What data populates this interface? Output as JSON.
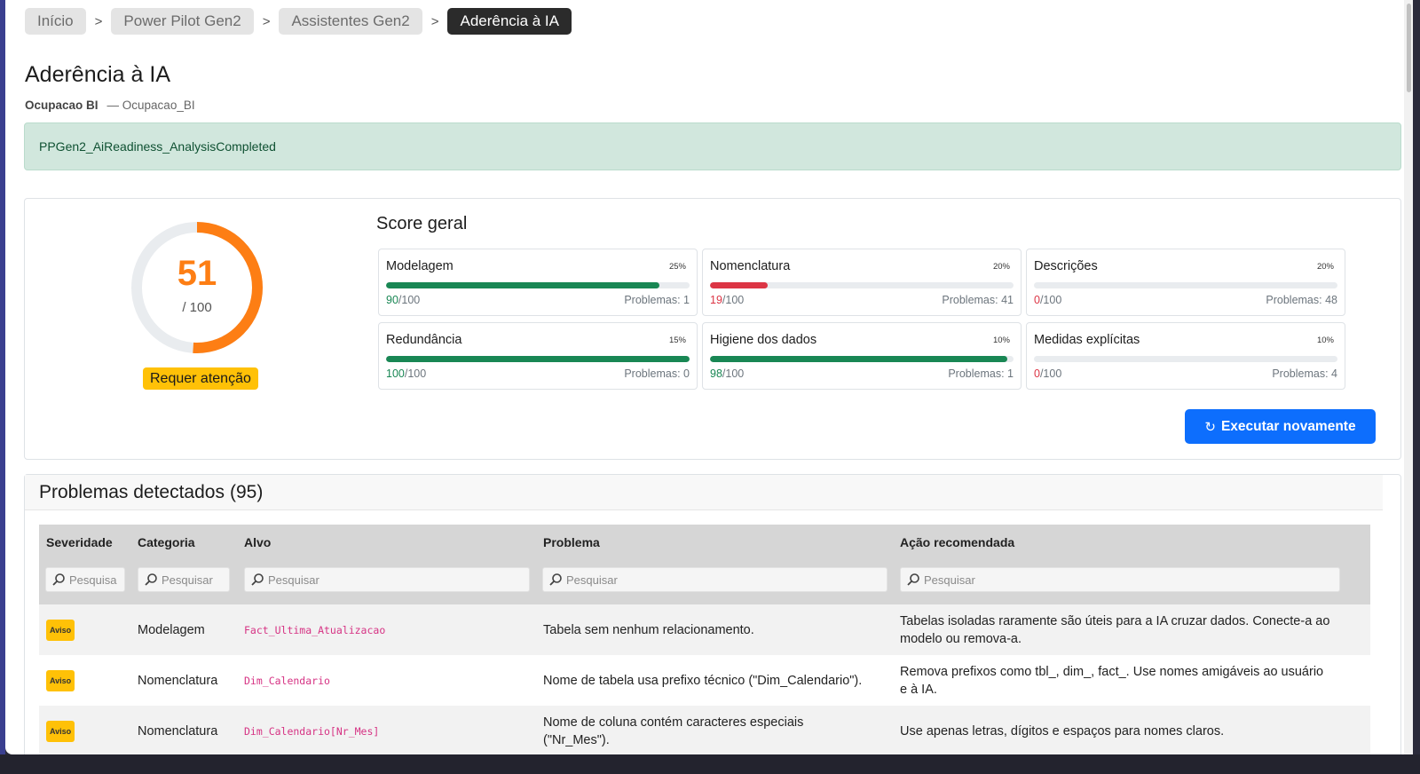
{
  "breadcrumb": {
    "items": [
      "Início",
      "Power Pilot Gen2",
      "Assistentes Gen2",
      "Aderência à IA"
    ],
    "separator": ">"
  },
  "page": {
    "title": "Aderência à IA",
    "model_name": "Ocupacao BI",
    "model_id": "— Ocupacao_BI"
  },
  "alert": {
    "message": "PPGen2_AiReadiness_AnalysisCompleted"
  },
  "score": {
    "value": "51",
    "max_label": "/ 100",
    "value_num": 51,
    "status": "Requer atenção",
    "gauge_color": "#fd7e14"
  },
  "score_section": {
    "title": "Score geral"
  },
  "metrics": [
    {
      "name": "Modelagem",
      "weight": "25%",
      "score": "90",
      "suffix": "/100",
      "score_num": 90,
      "problems": "Problemas: 1",
      "color": "#198754"
    },
    {
      "name": "Nomenclatura",
      "weight": "20%",
      "score": "19",
      "suffix": "/100",
      "score_num": 19,
      "problems": "Problemas: 41",
      "color": "#dc3545"
    },
    {
      "name": "Descrições",
      "weight": "20%",
      "score": "0",
      "suffix": "/100",
      "score_num": 0,
      "problems": "Problemas: 48",
      "color": "#dc3545"
    },
    {
      "name": "Redundância",
      "weight": "15%",
      "score": "100",
      "suffix": "/100",
      "score_num": 100,
      "problems": "Problemas: 0",
      "color": "#198754"
    },
    {
      "name": "Higiene dos dados",
      "weight": "10%",
      "score": "98",
      "suffix": "/100",
      "score_num": 98,
      "problems": "Problemas: 1",
      "color": "#198754"
    },
    {
      "name": "Medidas explícitas",
      "weight": "10%",
      "score": "0",
      "suffix": "/100",
      "score_num": 0,
      "problems": "Problemas: 4",
      "color": "#dc3545"
    }
  ],
  "actions": {
    "rerun_label": "Executar novamente"
  },
  "problems": {
    "title": "Problemas detectados",
    "count": "(95)",
    "columns": [
      "Severidade",
      "Categoria",
      "Alvo",
      "Problema",
      "Ação recomendada"
    ],
    "filters": [
      "Pesquisa",
      "Pesquisar",
      "Pesquisar",
      "Pesquisar",
      "Pesquisar"
    ],
    "rows": [
      {
        "severity": "Aviso",
        "category": "Modelagem",
        "target": "Fact_Ultima_Atualizacao",
        "problem": "Tabela sem nenhum relacionamento.",
        "action": "Tabelas isoladas raramente são úteis para a IA cruzar dados. Conecte-a ao modelo ou remova-a."
      },
      {
        "severity": "Aviso",
        "category": "Nomenclatura",
        "target": "Dim_Calendario",
        "problem": "Nome de tabela usa prefixo técnico (\"Dim_Calendario\").",
        "action": "Remova prefixos como tbl_, dim_, fact_. Use nomes amigáveis ao usuário e à IA."
      },
      {
        "severity": "Aviso",
        "category": "Nomenclatura",
        "target": "Dim_Calendario[Nr_Mes]",
        "problem": "Nome de coluna contém caracteres especiais (\"Nr_Mes\").",
        "action": "Use apenas letras, dígitos e espaços para nomes claros."
      }
    ]
  }
}
